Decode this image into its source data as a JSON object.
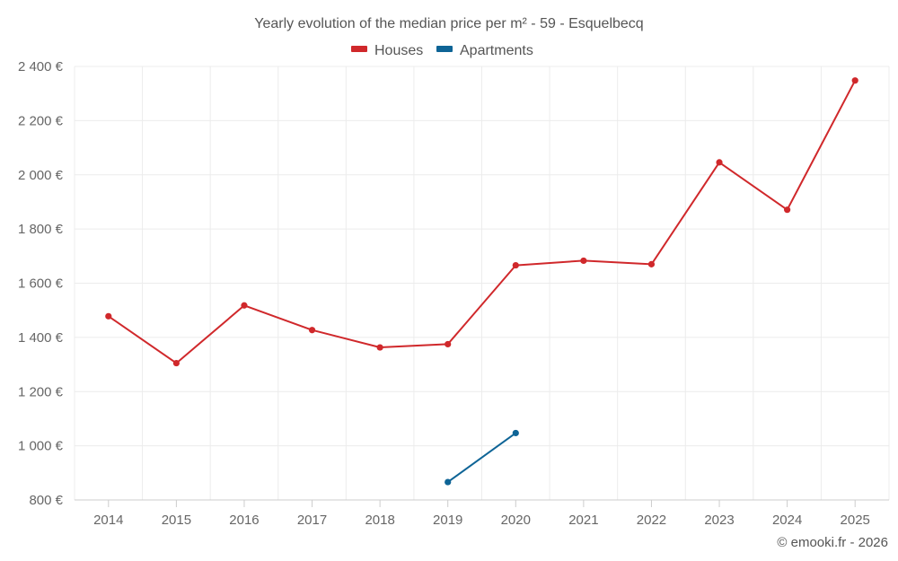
{
  "chart_data": {
    "type": "line",
    "title": "Yearly evolution of the median price per m² - 59 - Esquelbecq",
    "categories": [
      "2014",
      "2015",
      "2016",
      "2017",
      "2018",
      "2019",
      "2020",
      "2021",
      "2022",
      "2023",
      "2024",
      "2025"
    ],
    "series": [
      {
        "name": "Houses",
        "color": "#d0282b",
        "values": [
          1478,
          1305,
          1518,
          1427,
          1363,
          1375,
          1666,
          1683,
          1670,
          2046,
          1871,
          2348
        ]
      },
      {
        "name": "Apartments",
        "color": "#0e6496",
        "values": [
          null,
          null,
          null,
          null,
          null,
          866,
          1047,
          null,
          null,
          null,
          null,
          null
        ]
      }
    ],
    "y_ticks": [
      "800 €",
      "1 000 €",
      "1 200 €",
      "1 400 €",
      "1 600 €",
      "1 800 €",
      "2 000 €",
      "2 200 €",
      "2 400 €"
    ],
    "ylim": [
      800,
      2400
    ],
    "xlabel": "",
    "ylabel": "",
    "legend_position": "top-center",
    "grid": true
  },
  "credit": "© emooki.fr - 2026"
}
